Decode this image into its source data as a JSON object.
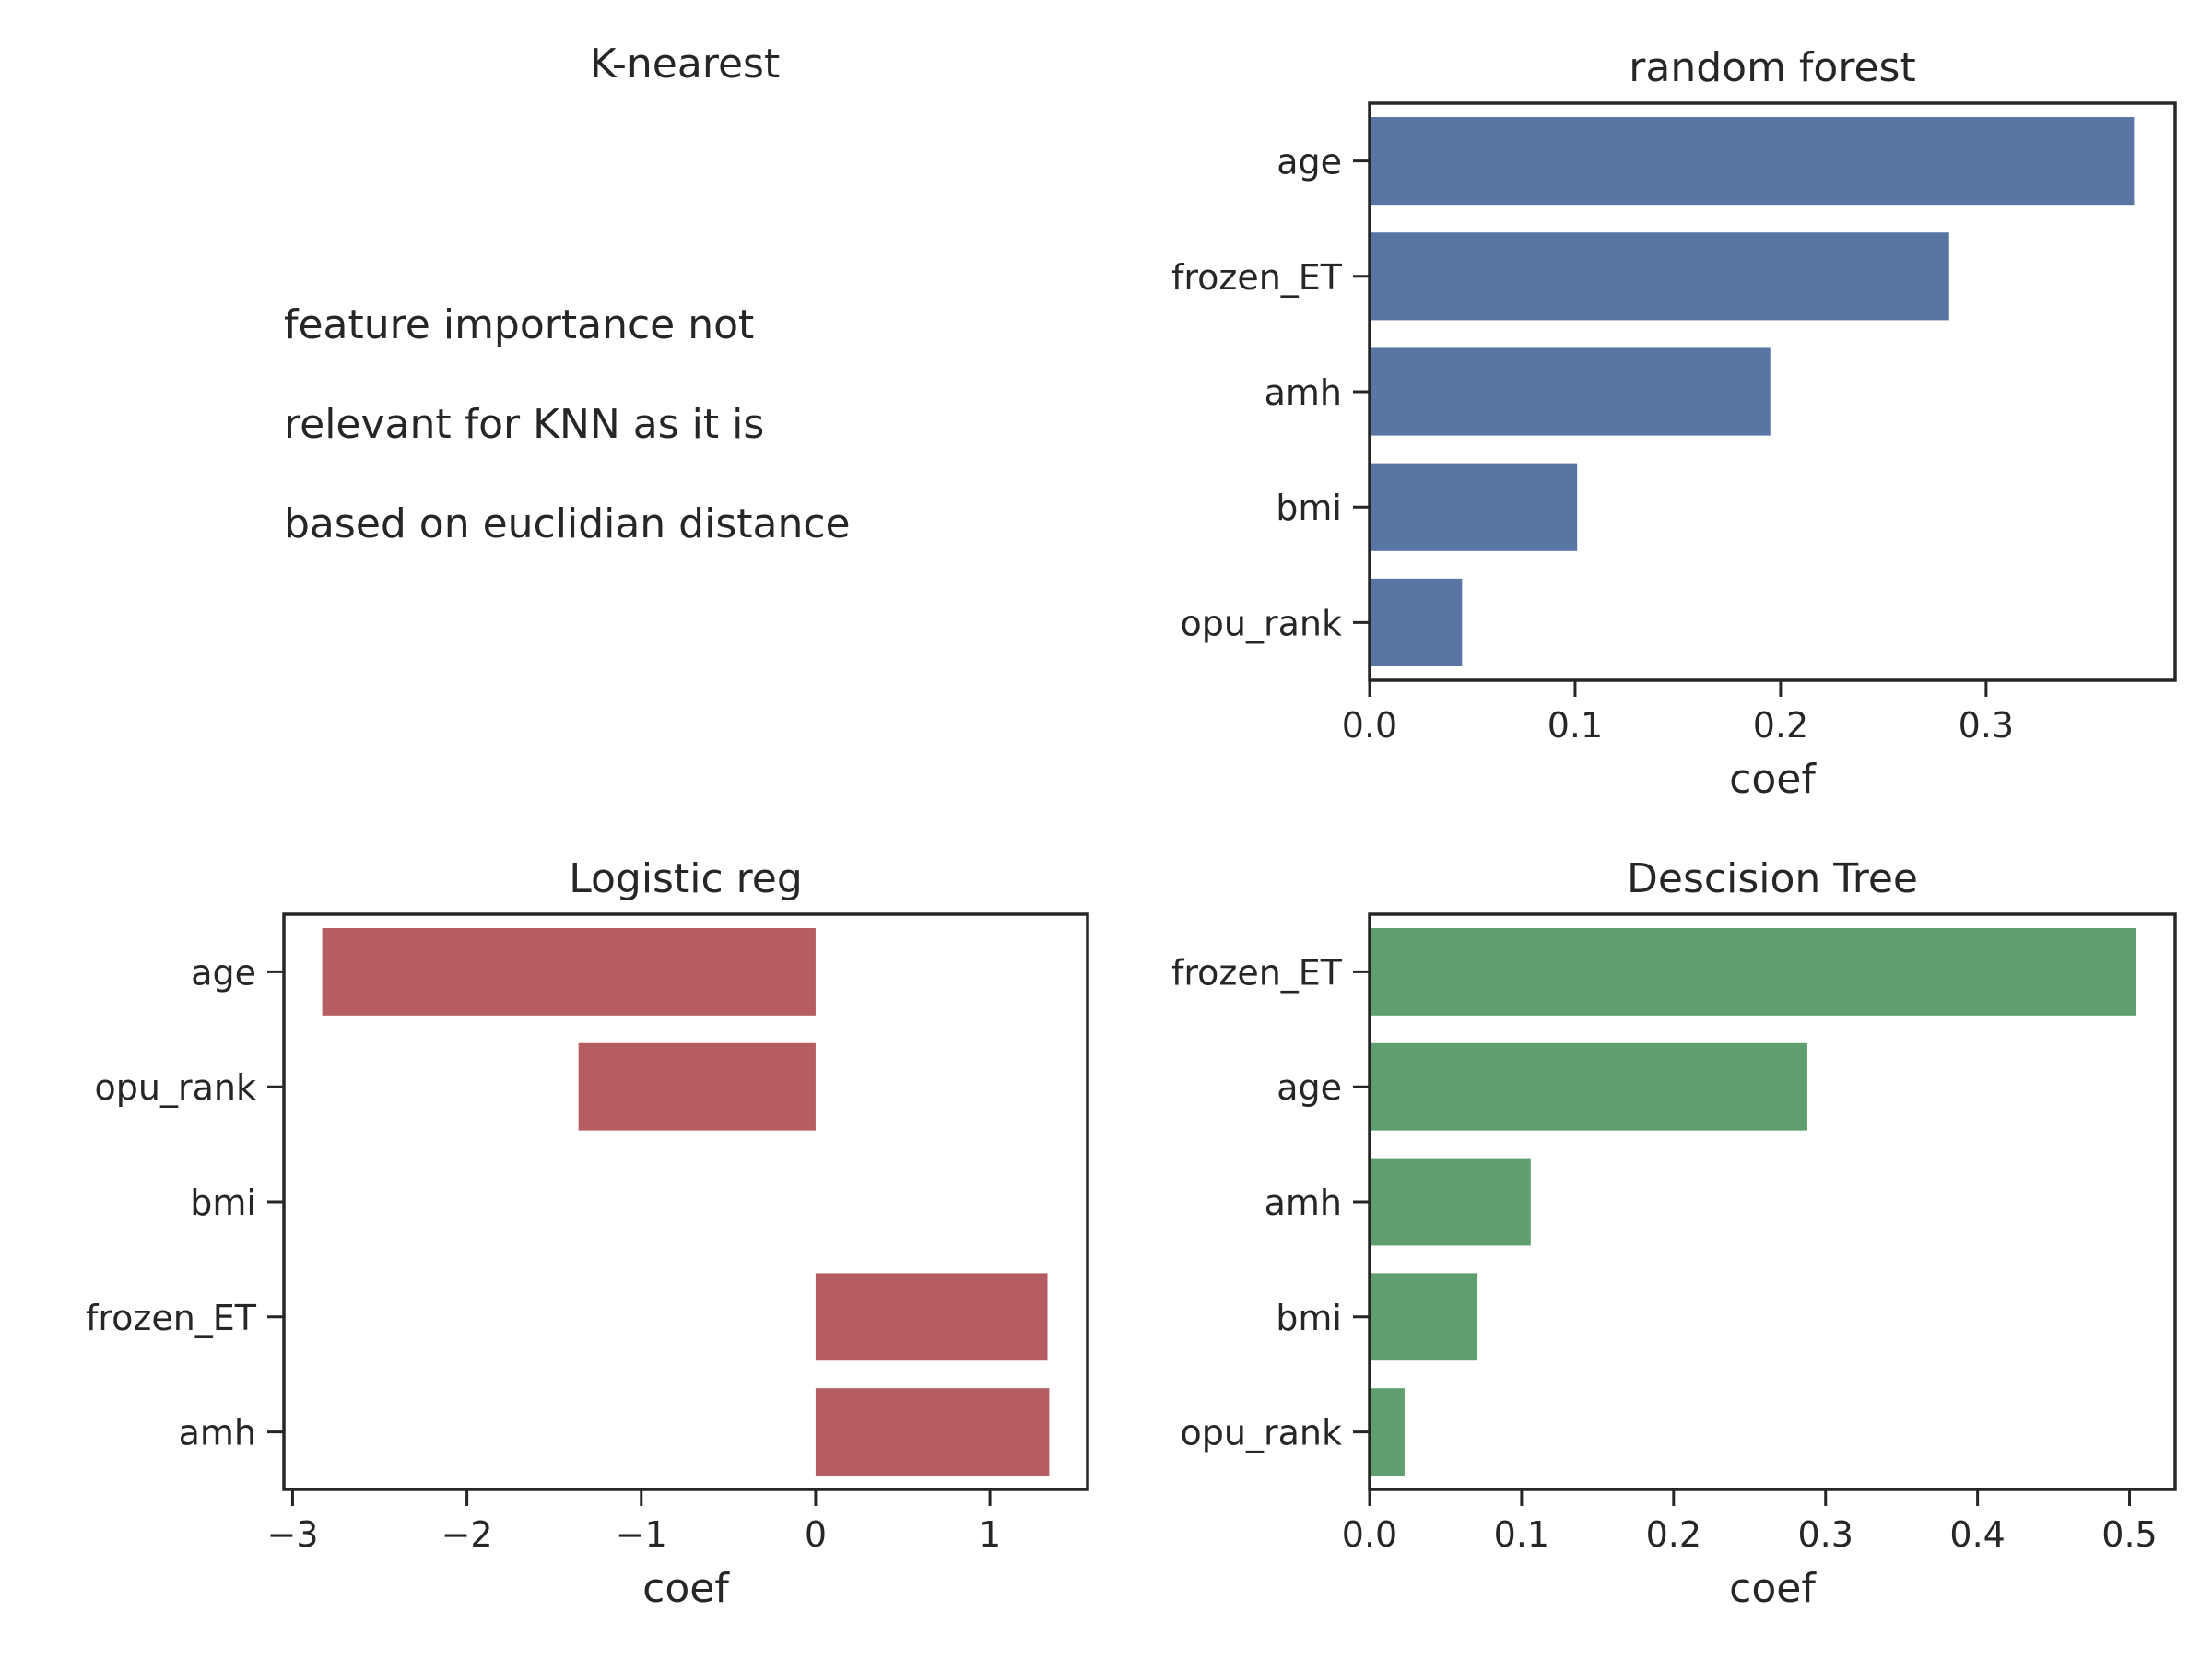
{
  "chart_data": [
    {
      "id": "knn",
      "type": "text",
      "title": "K-nearest",
      "note_lines": [
        "feature importance not",
        "relevant for KNN as it is",
        "based on euclidian distance"
      ]
    },
    {
      "id": "rf",
      "type": "bar",
      "orientation": "horizontal",
      "title": "random forest",
      "xlabel": "coef",
      "ylabel": "",
      "categories": [
        "age",
        "frozen_ET",
        "amh",
        "bmi",
        "opu_rank"
      ],
      "values": [
        0.372,
        0.282,
        0.195,
        0.101,
        0.045
      ],
      "xlim": [
        0.0,
        0.392
      ],
      "xticks": [
        0.0,
        0.1,
        0.2,
        0.3
      ],
      "xtick_labels": [
        "0.0",
        "0.1",
        "0.2",
        "0.3"
      ],
      "color": "#5875a4"
    },
    {
      "id": "lr",
      "type": "bar",
      "orientation": "horizontal",
      "title": "Logistic reg",
      "xlabel": "coef",
      "ylabel": "",
      "categories": [
        "age",
        "opu_rank",
        "bmi",
        "frozen_ET",
        "amh"
      ],
      "values": [
        -2.83,
        -1.36,
        0.0,
        1.33,
        1.34
      ],
      "xlim": [
        -3.05,
        1.56
      ],
      "xticks": [
        -3,
        -2,
        -1,
        0,
        1
      ],
      "xtick_labels": [
        "−3",
        "−2",
        "−1",
        "0",
        "1"
      ],
      "color": "#b55d60"
    },
    {
      "id": "dt",
      "type": "bar",
      "orientation": "horizontal",
      "title": "Descision Tree",
      "xlabel": "coef",
      "ylabel": "",
      "categories": [
        "frozen_ET",
        "age",
        "amh",
        "bmi",
        "opu_rank"
      ],
      "values": [
        0.504,
        0.288,
        0.106,
        0.071,
        0.023
      ],
      "xlim": [
        0.0,
        0.53
      ],
      "xticks": [
        0.0,
        0.1,
        0.2,
        0.3,
        0.4,
        0.5
      ],
      "xtick_labels": [
        "0.0",
        "0.1",
        "0.2",
        "0.3",
        "0.4",
        "0.5"
      ],
      "color": "#5f9e6e"
    }
  ]
}
